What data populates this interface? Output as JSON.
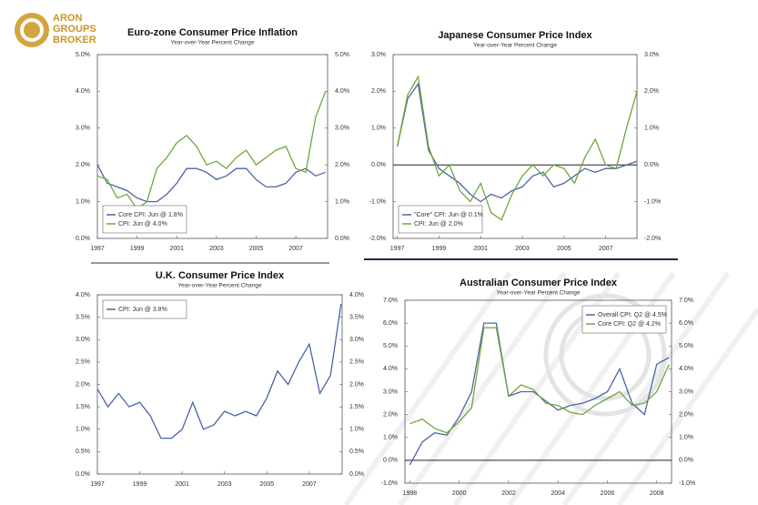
{
  "logo": {
    "lines": [
      "ARON",
      "GROUPS",
      "BROKER"
    ]
  },
  "chart_data": [
    {
      "type": "line",
      "title": "Euro-zone Consumer Price Inflation",
      "subtitle": "Year-over-Year Percent Change",
      "x": [
        1997,
        1997.5,
        1998,
        1998.5,
        1999,
        1999.5,
        2000,
        2000.5,
        2001,
        2001.5,
        2002,
        2002.5,
        2003,
        2003.5,
        2004,
        2004.5,
        2005,
        2005.5,
        2006,
        2006.5,
        2007,
        2007.5,
        2008,
        2008.5
      ],
      "series": [
        {
          "name": "Core CPI: Jun @ 1.8%",
          "color": "#4a64a8",
          "values": [
            2.0,
            1.5,
            1.4,
            1.3,
            1.1,
            1.0,
            1.0,
            1.2,
            1.5,
            1.9,
            1.9,
            1.8,
            1.6,
            1.7,
            1.9,
            1.9,
            1.6,
            1.4,
            1.4,
            1.5,
            1.8,
            1.9,
            1.7,
            1.8
          ]
        },
        {
          "name": "CPI: Jun @ 4.0%",
          "color": "#6aaa3a",
          "values": [
            1.7,
            1.6,
            1.1,
            1.2,
            0.8,
            1.0,
            1.9,
            2.2,
            2.6,
            2.8,
            2.5,
            2.0,
            2.1,
            1.9,
            2.2,
            2.4,
            2.0,
            2.2,
            2.4,
            2.5,
            1.9,
            1.8,
            3.3,
            4.0
          ]
        }
      ],
      "xlim": [
        1997,
        2008.6
      ],
      "xticks": [
        1997,
        1999,
        2001,
        2003,
        2005,
        2007
      ],
      "ylim": [
        0,
        5
      ],
      "yticks": [
        {
          "value": 0,
          "label": "0.0%"
        },
        {
          "value": 1,
          "label": "1.0%"
        },
        {
          "value": 2,
          "label": "2.0%"
        },
        {
          "value": 3,
          "label": "3.0%"
        },
        {
          "value": 4,
          "label": "4.0%"
        },
        {
          "value": 5,
          "label": "5.0%"
        }
      ],
      "y2lim": [
        0,
        5
      ],
      "y2ticks": [
        {
          "value": 0,
          "label": "0.0%"
        },
        {
          "value": 1,
          "label": "1.0%"
        },
        {
          "value": 2,
          "label": "2.0%"
        },
        {
          "value": 3,
          "label": "3.0%"
        },
        {
          "value": 4,
          "label": "4.0%"
        },
        {
          "value": 5,
          "label": "5.0%"
        }
      ],
      "legend": "lower left"
    },
    {
      "type": "line",
      "title": "Japanese Consumer Price Index",
      "subtitle": "Year-over-Year Percent Change",
      "x": [
        1997,
        1997.5,
        1998,
        1998.5,
        1999,
        1999.5,
        2000,
        2000.5,
        2001,
        2001.5,
        2002,
        2002.5,
        2003,
        2003.5,
        2004,
        2004.5,
        2005,
        2005.5,
        2006,
        2006.5,
        2007,
        2007.5,
        2008,
        2008.5
      ],
      "series": [
        {
          "name": "\"Core\" CPI: Jun @ 0.1%",
          "color": "#4a64a8",
          "values": [
            0.5,
            1.8,
            2.2,
            0.4,
            -0.1,
            -0.3,
            -0.5,
            -0.8,
            -1.0,
            -0.8,
            -0.9,
            -0.7,
            -0.6,
            -0.3,
            -0.2,
            -0.6,
            -0.5,
            -0.3,
            -0.1,
            -0.2,
            -0.1,
            -0.1,
            0.0,
            0.1
          ]
        },
        {
          "name": "CPI: Jun @ 2.0%",
          "color": "#6aaa3a",
          "values": [
            0.5,
            1.9,
            2.4,
            0.5,
            -0.3,
            0.0,
            -0.7,
            -1.0,
            -0.5,
            -1.3,
            -1.5,
            -0.8,
            -0.3,
            0.0,
            -0.3,
            0.0,
            -0.1,
            -0.5,
            0.2,
            0.7,
            0.0,
            -0.1,
            1.0,
            2.0
          ]
        }
      ],
      "xlim": [
        1996.8,
        2008.5
      ],
      "xticks": [
        1997,
        1999,
        2001,
        2003,
        2005,
        2007
      ],
      "ylim": [
        -2,
        3
      ],
      "yticks": [
        {
          "value": -2,
          "label": "-2.0%"
        },
        {
          "value": -1,
          "label": "-1.0%"
        },
        {
          "value": 0,
          "label": "0.0%"
        },
        {
          "value": 1,
          "label": "1.0%"
        },
        {
          "value": 2,
          "label": "2.0%"
        },
        {
          "value": 3,
          "label": "3.0%"
        }
      ],
      "y2lim": [
        -2,
        3
      ],
      "y2ticks": [
        {
          "value": -2,
          "label": "-2.0%"
        },
        {
          "value": -1,
          "label": "-1.0%"
        },
        {
          "value": 0,
          "label": "0.0%"
        },
        {
          "value": 1,
          "label": "1.0%"
        },
        {
          "value": 2,
          "label": "2.0%"
        },
        {
          "value": 3,
          "label": "3.0%"
        }
      ],
      "reference_line": 0,
      "legend": "lower left"
    },
    {
      "type": "line",
      "title": "U.K. Consumer Price Index",
      "subtitle": "Year-over-Year Percent Change",
      "x": [
        1997,
        1997.5,
        1998,
        1998.5,
        1999,
        1999.5,
        2000,
        2000.5,
        2001,
        2001.5,
        2002,
        2002.5,
        2003,
        2003.5,
        2004,
        2004.5,
        2005,
        2005.5,
        2006,
        2006.5,
        2007,
        2007.5,
        2008,
        2008.5
      ],
      "series": [
        {
          "name": "CPI: Jun @ 3.8%",
          "color": "#4a64a8",
          "values": [
            1.9,
            1.5,
            1.8,
            1.5,
            1.6,
            1.3,
            0.8,
            0.8,
            1.0,
            1.6,
            1.0,
            1.1,
            1.4,
            1.3,
            1.4,
            1.3,
            1.7,
            2.3,
            2.0,
            2.5,
            2.9,
            1.8,
            2.2,
            3.8
          ]
        }
      ],
      "xlim": [
        1997,
        2008.55
      ],
      "xticks": [
        1997,
        1999,
        2001,
        2003,
        2005,
        2007
      ],
      "ylim": [
        0,
        4
      ],
      "yticks": [
        {
          "value": 0,
          "label": "0.0%"
        },
        {
          "value": 0.5,
          "label": "0.5%"
        },
        {
          "value": 1,
          "label": "1.0%"
        },
        {
          "value": 1.5,
          "label": "1.5%"
        },
        {
          "value": 2,
          "label": "2.0%"
        },
        {
          "value": 2.5,
          "label": "2.5%"
        },
        {
          "value": 3,
          "label": "3.0%"
        },
        {
          "value": 3.5,
          "label": "3.5%"
        },
        {
          "value": 4,
          "label": "4.0%"
        }
      ],
      "y2lim": [
        0,
        4
      ],
      "y2ticks": [
        {
          "value": 0,
          "label": "0.0%"
        },
        {
          "value": 0.5,
          "label": "0.5%"
        },
        {
          "value": 1,
          "label": "1.0%"
        },
        {
          "value": 1.5,
          "label": "1.5%"
        },
        {
          "value": 2,
          "label": "2.0%"
        },
        {
          "value": 2.5,
          "label": "2.5%"
        },
        {
          "value": 3,
          "label": "3.0%"
        },
        {
          "value": 3.5,
          "label": "3.5%"
        },
        {
          "value": 4,
          "label": "4.0%"
        }
      ],
      "legend": "upper left"
    },
    {
      "type": "line",
      "title": "Australian Consumer Price Index",
      "subtitle": "Year-over-Year Percent Change",
      "x": [
        1998,
        1998.5,
        1999,
        1999.5,
        2000,
        2000.5,
        2001,
        2001.5,
        2002,
        2002.5,
        2003,
        2003.5,
        2004,
        2004.5,
        2005,
        2005.5,
        2006,
        2006.5,
        2007,
        2007.5,
        2008,
        2008.5
      ],
      "series": [
        {
          "name": "Overall CPI: Q2 @ 4.5%",
          "color": "#4a64a8",
          "values": [
            -0.2,
            0.8,
            1.2,
            1.1,
            1.9,
            3.0,
            6.0,
            6.0,
            2.8,
            3.0,
            3.0,
            2.6,
            2.2,
            2.4,
            2.5,
            2.7,
            3.0,
            4.0,
            2.5,
            2.0,
            4.2,
            4.5
          ]
        },
        {
          "name": "Core CPI: Q2 @ 4.2%",
          "color": "#6aaa3a",
          "values": [
            1.6,
            1.8,
            1.4,
            1.2,
            1.7,
            2.3,
            5.8,
            5.8,
            2.8,
            3.3,
            3.1,
            2.5,
            2.4,
            2.1,
            2.0,
            2.4,
            2.7,
            3.0,
            2.4,
            2.5,
            3.0,
            4.2
          ]
        }
      ],
      "xlim": [
        1997.8,
        2008.6
      ],
      "xticks": [
        1998,
        2000,
        2002,
        2004,
        2006,
        2008
      ],
      "ylim": [
        -1,
        7
      ],
      "yticks": [
        {
          "value": -1,
          "label": "-1.0%"
        },
        {
          "value": 0,
          "label": "0.0%"
        },
        {
          "value": 1,
          "label": "1.0%"
        },
        {
          "value": 2,
          "label": "2.0%"
        },
        {
          "value": 3,
          "label": "3.0%"
        },
        {
          "value": 4,
          "label": "4.0%"
        },
        {
          "value": 5,
          "label": "5.0%"
        },
        {
          "value": 6,
          "label": "6.0%"
        },
        {
          "value": 7,
          "label": "7.0%"
        }
      ],
      "y2lim": [
        -1,
        7
      ],
      "y2ticks": [
        {
          "value": -1,
          "label": "-1.0%"
        },
        {
          "value": 0,
          "label": "0.0%"
        },
        {
          "value": 1,
          "label": "1.0%"
        },
        {
          "value": 2,
          "label": "2.0%"
        },
        {
          "value": 3,
          "label": "3.0%"
        },
        {
          "value": 4,
          "label": "4.0%"
        },
        {
          "value": 5,
          "label": "5.0%"
        },
        {
          "value": 6,
          "label": "6.0%"
        },
        {
          "value": 7,
          "label": "7.0%"
        }
      ],
      "reference_line": 0,
      "legend": "upper right"
    }
  ]
}
